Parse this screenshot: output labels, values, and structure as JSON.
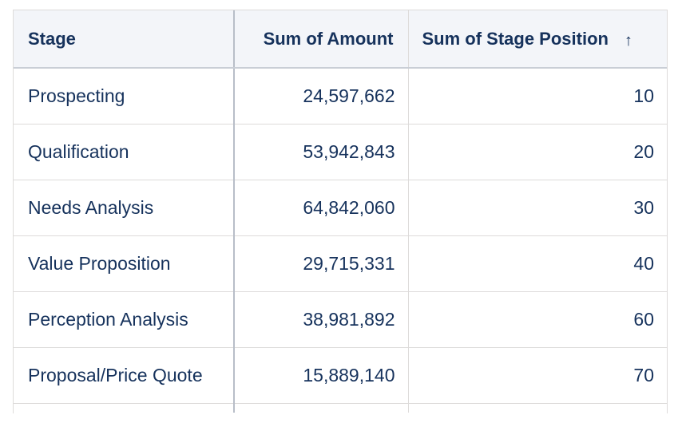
{
  "table": {
    "columns": {
      "stage": "Stage",
      "amount": "Sum of Amount",
      "position": "Sum of Stage Position",
      "sort_icon": "arrow-up-icon"
    },
    "rows": [
      {
        "stage": "Prospecting",
        "amount": "24,597,662",
        "position": "10"
      },
      {
        "stage": "Qualification",
        "amount": "53,942,843",
        "position": "20"
      },
      {
        "stage": "Needs Analysis",
        "amount": "64,842,060",
        "position": "30"
      },
      {
        "stage": "Value Proposition",
        "amount": "29,715,331",
        "position": "40"
      },
      {
        "stage": "Perception Analysis",
        "amount": "38,981,892",
        "position": "60"
      },
      {
        "stage": "Proposal/Price Quote",
        "amount": "15,889,140",
        "position": "70"
      }
    ]
  },
  "colors": {
    "text": "#16325c",
    "header_bg": "#f3f5f9",
    "border": "#dddbda"
  }
}
